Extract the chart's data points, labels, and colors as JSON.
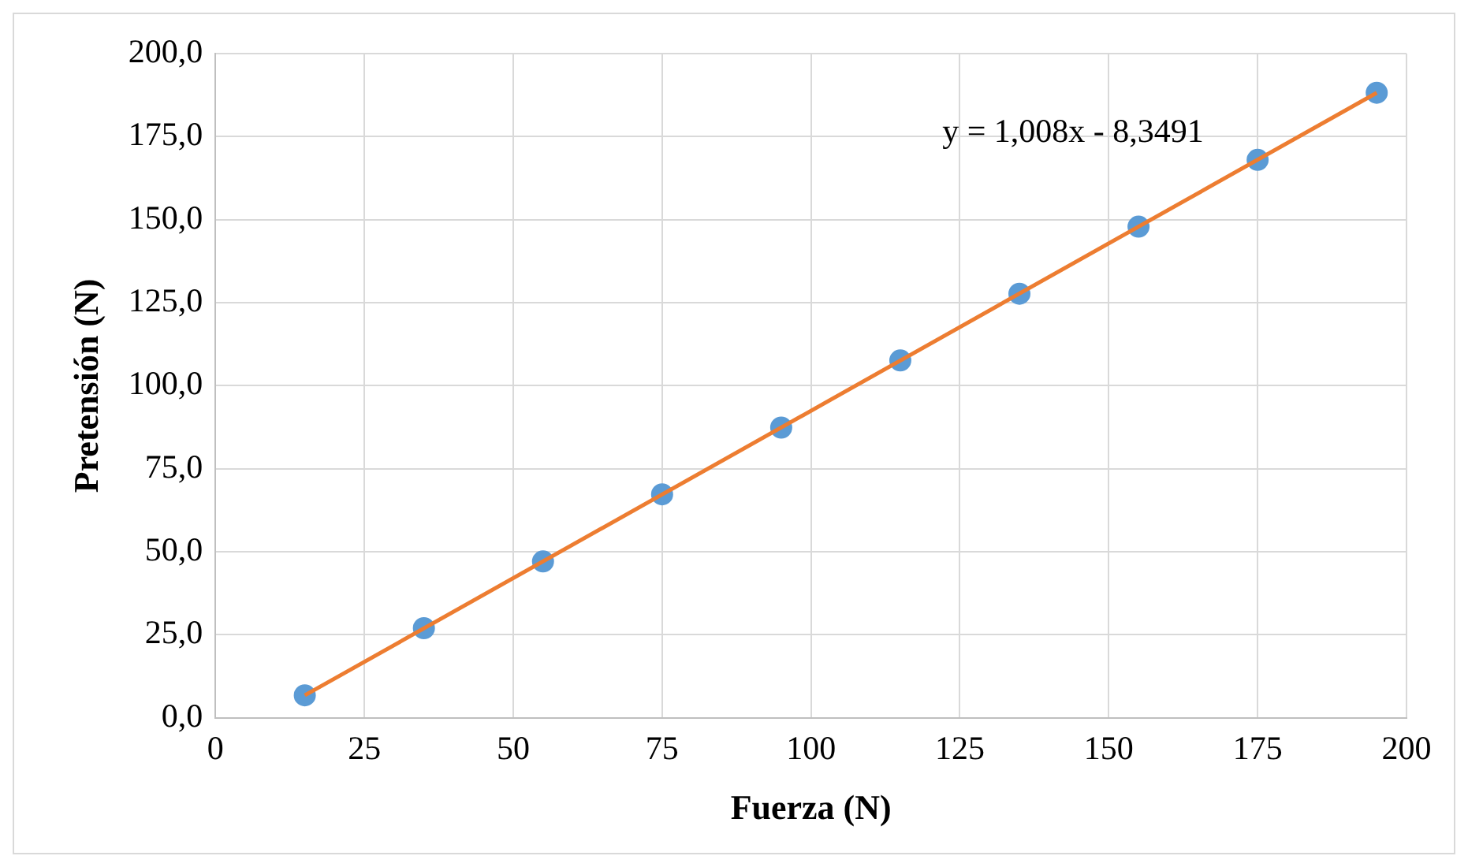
{
  "chart_data": {
    "type": "scatter",
    "xlabel": "Fuerza (N)",
    "ylabel": "Pretensión (N)",
    "xlim": [
      0,
      200
    ],
    "xticks": [
      0,
      25,
      50,
      75,
      100,
      125,
      150,
      175,
      200
    ],
    "ylim": [
      0,
      200
    ],
    "yticks": [
      {
        "value": 0,
        "label": "0,0"
      },
      {
        "value": 25,
        "label": "25,0"
      },
      {
        "value": 50,
        "label": "50,0"
      },
      {
        "value": 75,
        "label": "75,0"
      },
      {
        "value": 100,
        "label": "100,0"
      },
      {
        "value": 125,
        "label": "125,0"
      },
      {
        "value": 150,
        "label": "150,0"
      },
      {
        "value": 175,
        "label": "175,0"
      },
      {
        "value": 200,
        "label": "200,0"
      }
    ],
    "grid": true,
    "legend": false,
    "marker": "circle",
    "series": [
      {
        "color": "#5b9bd5",
        "x": [
          15,
          35,
          55,
          75,
          95,
          115,
          135,
          155,
          175,
          195
        ],
        "values": [
          6.8,
          27.0,
          47.1,
          67.3,
          87.4,
          107.6,
          127.7,
          147.9,
          168.0,
          188.2
        ]
      },
      {
        "type": "line",
        "color": "#ed7d31",
        "marker": "none",
        "x": [
          15,
          195
        ],
        "values": [
          6.8,
          188.2
        ]
      }
    ],
    "annotations": [
      "y = 1,008x - 8,3491"
    ]
  }
}
